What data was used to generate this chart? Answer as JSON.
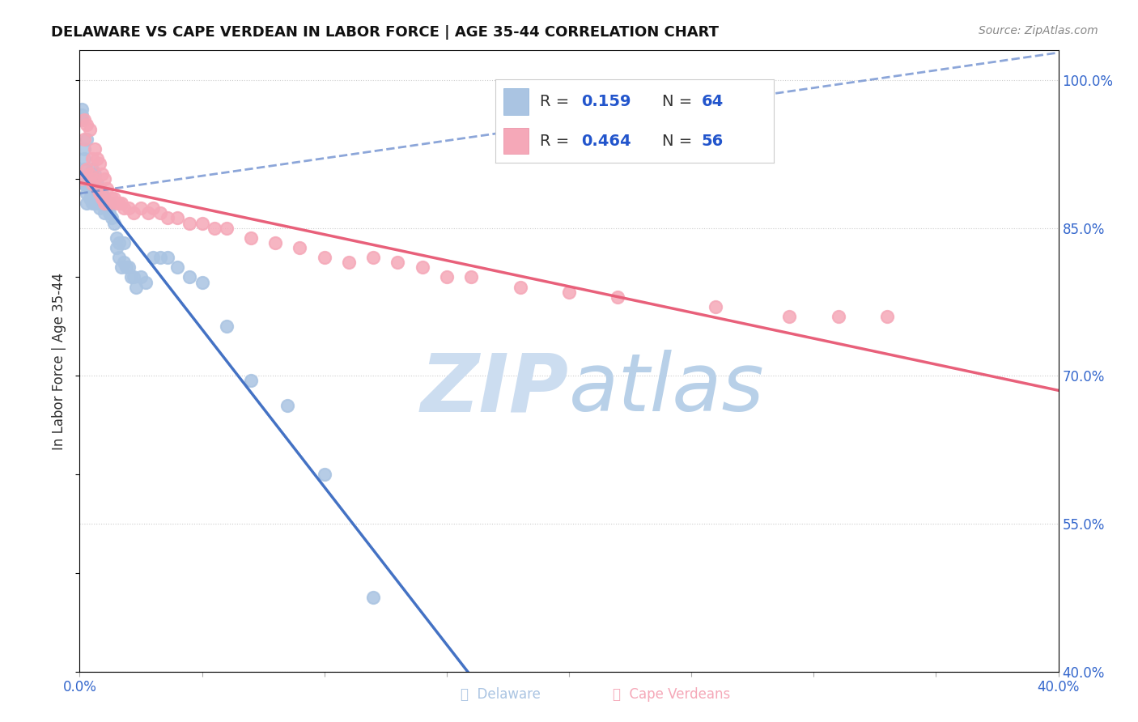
{
  "title": "DELAWARE VS CAPE VERDEAN IN LABOR FORCE | AGE 35-44 CORRELATION CHART",
  "source": "Source: ZipAtlas.com",
  "ylabel": "In Labor Force | Age 35-44",
  "xlim": [
    0.0,
    0.4
  ],
  "ylim": [
    0.4,
    1.03
  ],
  "xtick_positions": [
    0.0,
    0.05,
    0.1,
    0.15,
    0.2,
    0.25,
    0.3,
    0.35,
    0.4
  ],
  "xticklabels": [
    "0.0%",
    "",
    "",
    "",
    "",
    "",
    "",
    "",
    "40.0%"
  ],
  "yticks_right": [
    0.4,
    0.55,
    0.7,
    0.85,
    1.0
  ],
  "yticklabels_right": [
    "40.0%",
    "55.0%",
    "70.0%",
    "85.0%",
    "100.0%"
  ],
  "delaware_R": 0.159,
  "delaware_N": 64,
  "capeverdean_R": 0.464,
  "capeverdean_N": 56,
  "delaware_color": "#aac4e2",
  "capeverdean_color": "#f5a8b8",
  "delaware_line_color": "#4472c4",
  "capeverdean_line_color": "#e8607a",
  "dashed_line_color": "#7090d0",
  "watermark_zip_color": "#ccddf0",
  "watermark_atlas_color": "#b8d0e8",
  "delaware_x": [
    0.001,
    0.001,
    0.001,
    0.002,
    0.002,
    0.002,
    0.002,
    0.003,
    0.003,
    0.003,
    0.003,
    0.004,
    0.004,
    0.004,
    0.005,
    0.005,
    0.005,
    0.005,
    0.006,
    0.006,
    0.006,
    0.006,
    0.007,
    0.007,
    0.007,
    0.008,
    0.008,
    0.008,
    0.009,
    0.009,
    0.01,
    0.01,
    0.01,
    0.011,
    0.011,
    0.012,
    0.012,
    0.013,
    0.014,
    0.015,
    0.015,
    0.016,
    0.016,
    0.017,
    0.018,
    0.018,
    0.019,
    0.02,
    0.021,
    0.022,
    0.023,
    0.025,
    0.027,
    0.03,
    0.033,
    0.036,
    0.04,
    0.045,
    0.05,
    0.06,
    0.07,
    0.085,
    0.1,
    0.12
  ],
  "delaware_y": [
    0.97,
    0.965,
    0.96,
    0.93,
    0.92,
    0.91,
    0.895,
    0.94,
    0.895,
    0.885,
    0.875,
    0.9,
    0.89,
    0.88,
    0.91,
    0.9,
    0.885,
    0.875,
    0.905,
    0.895,
    0.885,
    0.875,
    0.895,
    0.885,
    0.875,
    0.89,
    0.88,
    0.87,
    0.885,
    0.875,
    0.88,
    0.875,
    0.865,
    0.875,
    0.87,
    0.875,
    0.865,
    0.86,
    0.855,
    0.84,
    0.83,
    0.835,
    0.82,
    0.81,
    0.835,
    0.815,
    0.81,
    0.81,
    0.8,
    0.8,
    0.79,
    0.8,
    0.795,
    0.82,
    0.82,
    0.82,
    0.81,
    0.8,
    0.795,
    0.75,
    0.695,
    0.67,
    0.6,
    0.475
  ],
  "capeverdean_x": [
    0.001,
    0.002,
    0.002,
    0.003,
    0.003,
    0.004,
    0.004,
    0.005,
    0.005,
    0.006,
    0.006,
    0.007,
    0.007,
    0.008,
    0.008,
    0.009,
    0.009,
    0.01,
    0.01,
    0.011,
    0.012,
    0.013,
    0.014,
    0.015,
    0.016,
    0.017,
    0.018,
    0.02,
    0.022,
    0.025,
    0.028,
    0.03,
    0.033,
    0.036,
    0.04,
    0.045,
    0.05,
    0.055,
    0.06,
    0.07,
    0.08,
    0.09,
    0.1,
    0.11,
    0.12,
    0.13,
    0.14,
    0.15,
    0.16,
    0.18,
    0.2,
    0.22,
    0.26,
    0.29,
    0.31,
    0.33
  ],
  "capeverdean_y": [
    0.9,
    0.96,
    0.94,
    0.955,
    0.91,
    0.95,
    0.905,
    0.92,
    0.895,
    0.93,
    0.9,
    0.92,
    0.89,
    0.915,
    0.885,
    0.905,
    0.88,
    0.9,
    0.875,
    0.89,
    0.875,
    0.88,
    0.88,
    0.875,
    0.875,
    0.875,
    0.87,
    0.87,
    0.865,
    0.87,
    0.865,
    0.87,
    0.865,
    0.86,
    0.86,
    0.855,
    0.855,
    0.85,
    0.85,
    0.84,
    0.835,
    0.83,
    0.82,
    0.815,
    0.82,
    0.815,
    0.81,
    0.8,
    0.8,
    0.79,
    0.785,
    0.78,
    0.77,
    0.76,
    0.76,
    0.76
  ],
  "dashed_line_x0": 0.0,
  "dashed_line_y0": 0.885,
  "dashed_line_x1": 0.35,
  "dashed_line_y1": 1.01
}
